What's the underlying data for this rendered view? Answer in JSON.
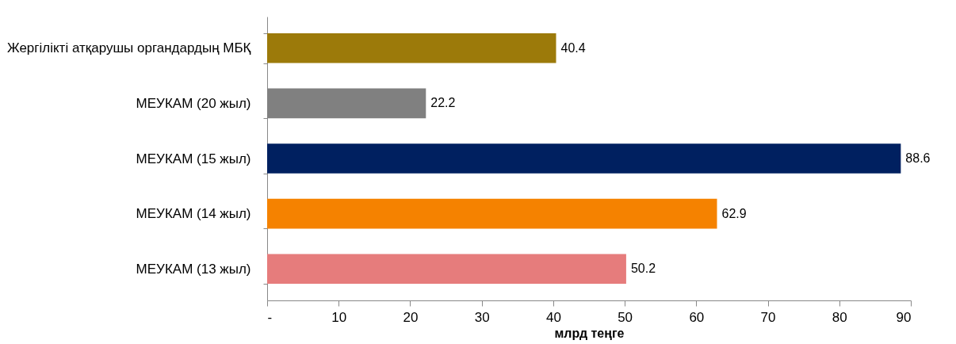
{
  "chart_data": {
    "type": "bar",
    "orientation": "horizontal",
    "xlabel": "млрд теңге",
    "categories": [
      "Жергілікті атқарушы органдардың МБҚ",
      "МЕУКАМ (20 жыл)",
      "МЕУКАМ (15 жыл)",
      "МЕУКАМ (14 жыл)",
      "МЕУКАМ (13 жыл)"
    ],
    "values": [
      40.4,
      22.2,
      88.6,
      62.9,
      50.2
    ],
    "colors": [
      "#9c7a0a",
      "#808080",
      "#002060",
      "#f58200",
      "#e67c7c"
    ],
    "xlim": [
      0,
      90
    ],
    "xticks": [
      {
        "value": 0,
        "label": "-"
      },
      10,
      20,
      30,
      40,
      50,
      60,
      70,
      80,
      90
    ],
    "data_labels": true
  }
}
